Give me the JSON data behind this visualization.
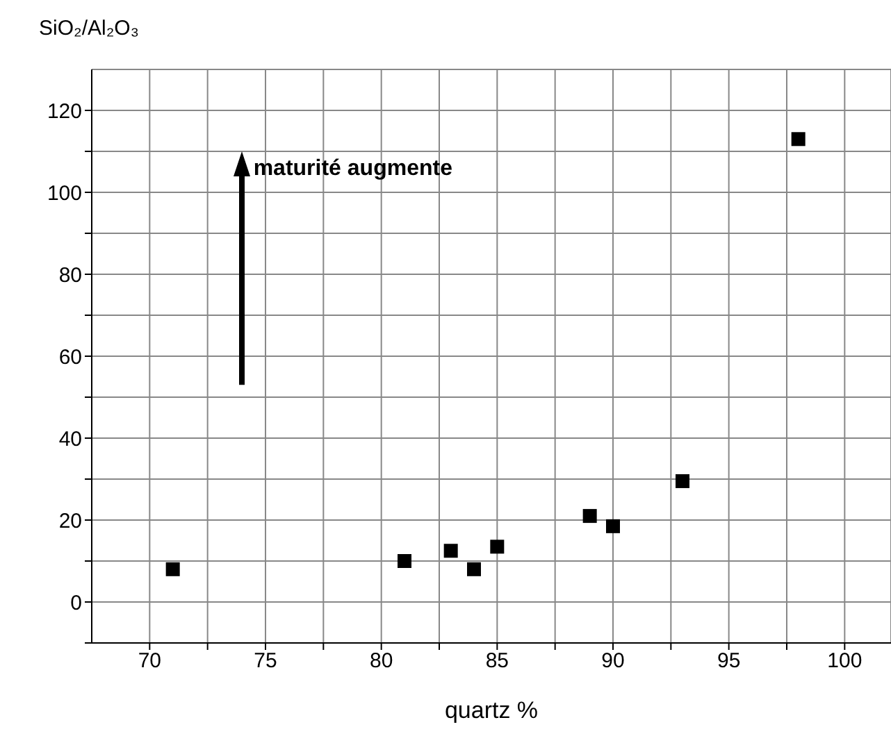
{
  "chart_data": {
    "type": "scatter",
    "xlabel": "quartz %",
    "ylabel": "SiO₂/Al₂O₃",
    "x": [
      71,
      81,
      83,
      84,
      85,
      89,
      90,
      93,
      98
    ],
    "values": [
      8,
      10,
      12.5,
      8,
      13.5,
      21,
      18.5,
      29.5,
      113
    ],
    "color": "#000000",
    "marker": "square",
    "grid": true,
    "xlim": [
      67.5,
      102
    ],
    "xticks": [
      70,
      {
        "value": 72.5,
        "label": null
      },
      75,
      {
        "value": 77.5,
        "label": null
      },
      80,
      {
        "value": 82.5,
        "label": null
      },
      85,
      {
        "value": 87.5,
        "label": null
      },
      90,
      {
        "value": 92.5,
        "label": null
      },
      95,
      {
        "value": 97.5,
        "label": null
      },
      100
    ],
    "ylim": [
      -10,
      130
    ],
    "yticks": [
      {
        "value": -10,
        "label": null
      },
      0,
      {
        "value": 10,
        "label": null
      },
      20,
      {
        "value": 30,
        "label": null
      },
      40,
      {
        "value": 50,
        "label": null
      },
      60,
      {
        "value": 70,
        "label": null
      },
      80,
      {
        "value": 90,
        "label": null
      },
      100,
      {
        "value": 110,
        "label": null
      },
      120
    ],
    "annotations": [
      "maturité augmente"
    ]
  }
}
